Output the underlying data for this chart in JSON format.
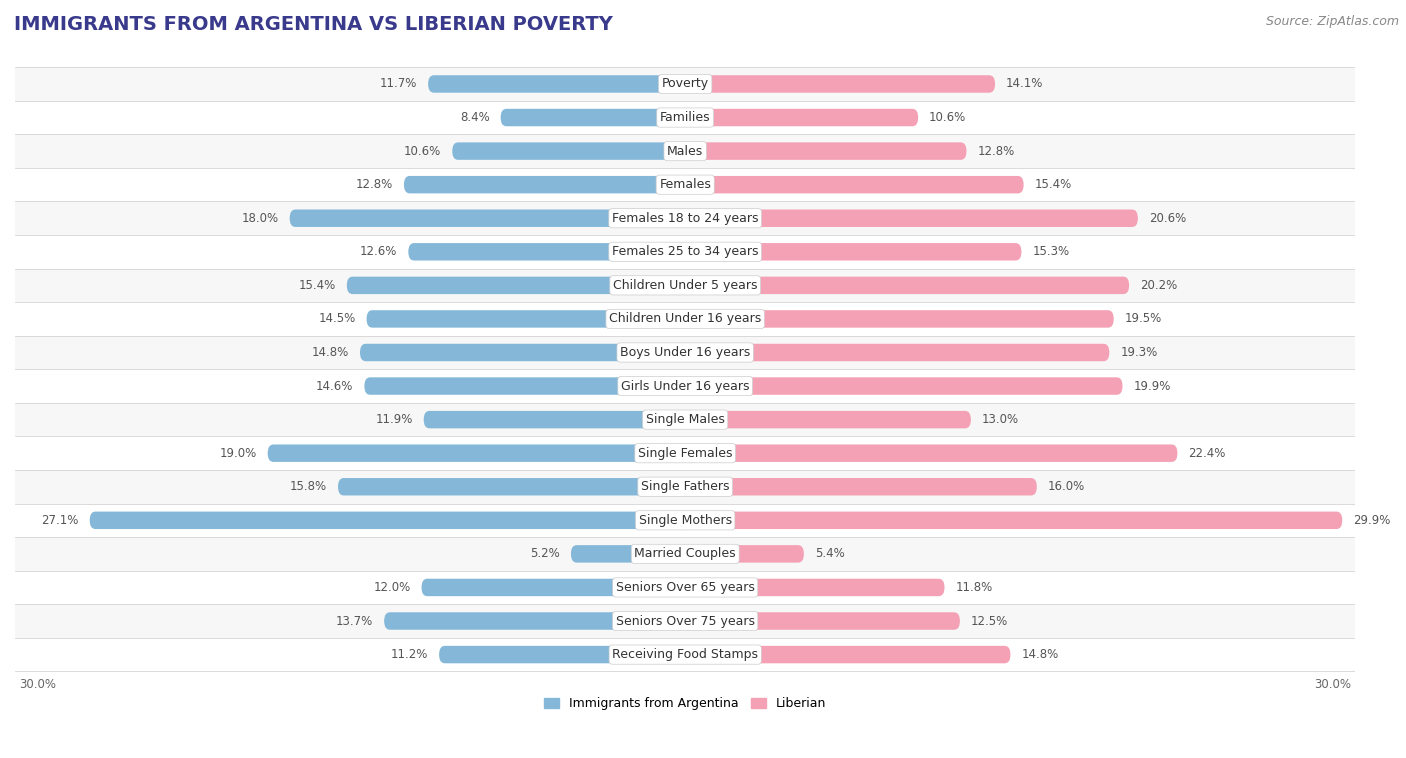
{
  "title": "IMMIGRANTS FROM ARGENTINA VS LIBERIAN POVERTY",
  "source": "Source: ZipAtlas.com",
  "categories": [
    "Poverty",
    "Families",
    "Males",
    "Females",
    "Females 18 to 24 years",
    "Females 25 to 34 years",
    "Children Under 5 years",
    "Children Under 16 years",
    "Boys Under 16 years",
    "Girls Under 16 years",
    "Single Males",
    "Single Females",
    "Single Fathers",
    "Single Mothers",
    "Married Couples",
    "Seniors Over 65 years",
    "Seniors Over 75 years",
    "Receiving Food Stamps"
  ],
  "left_values": [
    11.7,
    8.4,
    10.6,
    12.8,
    18.0,
    12.6,
    15.4,
    14.5,
    14.8,
    14.6,
    11.9,
    19.0,
    15.8,
    27.1,
    5.2,
    12.0,
    13.7,
    11.2
  ],
  "right_values": [
    14.1,
    10.6,
    12.8,
    15.4,
    20.6,
    15.3,
    20.2,
    19.5,
    19.3,
    19.9,
    13.0,
    22.4,
    16.0,
    29.9,
    5.4,
    11.8,
    12.5,
    14.8
  ],
  "left_color": "#85b8d8",
  "right_color": "#f4a0b5",
  "max_val": 30.0,
  "background_color": "#ffffff",
  "row_alt_color": "#f0f0f0",
  "legend_left": "Immigrants from Argentina",
  "legend_right": "Liberian",
  "title_fontsize": 14,
  "source_fontsize": 9,
  "label_fontsize": 9,
  "value_fontsize": 8.5
}
